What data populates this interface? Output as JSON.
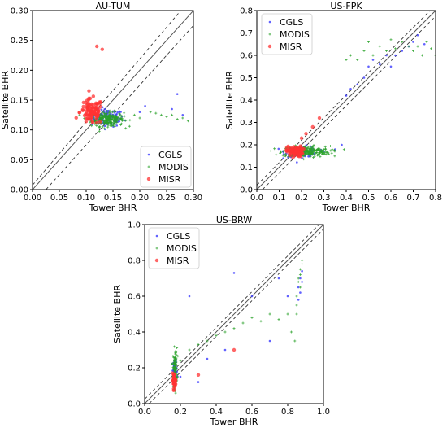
{
  "chart_data": [
    {
      "type": "scatter",
      "title": "AU-TUM",
      "xlabel": "Tower BHR",
      "ylabel": "Satellite BHR",
      "xlim": [
        0,
        0.3
      ],
      "ylim": [
        0,
        0.3
      ],
      "xticks": [
        "0.00",
        "0.05",
        "0.10",
        "0.15",
        "0.20",
        "0.25",
        "0.30"
      ],
      "yticks": [
        "0.00",
        "0.05",
        "0.10",
        "0.15",
        "0.20",
        "0.25",
        "0.30"
      ],
      "reference_lines": {
        "one_to_one": "solid",
        "offset": 0.025,
        "offset_style": "dashed"
      },
      "legend_placement": "lower-right",
      "series": [
        {
          "name": "CGLS",
          "color": "#3b3bff",
          "cluster": {
            "x_center": 0.14,
            "x_spread": 0.025,
            "y_center": 0.12,
            "y_spread": 0.012,
            "count": 110
          },
          "x": [
            0.2,
            0.21,
            0.26,
            0.27,
            0.28
          ],
          "y": [
            0.13,
            0.14,
            0.135,
            0.16,
            0.125
          ]
        },
        {
          "name": "MODIS",
          "color": "#2aa12a",
          "cluster": {
            "x_center": 0.14,
            "x_spread": 0.025,
            "y_center": 0.118,
            "y_spread": 0.01,
            "count": 230
          },
          "x": [
            0.19,
            0.2,
            0.22,
            0.23,
            0.24,
            0.25,
            0.26,
            0.27,
            0.28,
            0.29
          ],
          "y": [
            0.125,
            0.12,
            0.13,
            0.128,
            0.125,
            0.122,
            0.125,
            0.118,
            0.12,
            0.115
          ]
        },
        {
          "name": "MISR",
          "color": "#ff3333",
          "cluster": {
            "x_center": 0.11,
            "x_spread": 0.018,
            "y_center": 0.13,
            "y_spread": 0.018,
            "count": 100
          },
          "x": [
            0.12,
            0.13
          ],
          "y": [
            0.24,
            0.235
          ]
        }
      ]
    },
    {
      "type": "scatter",
      "title": "US-FPK",
      "xlabel": "Tower BHR",
      "ylabel": "Satellite BHR",
      "xlim": [
        0,
        0.8
      ],
      "ylim": [
        0,
        0.8
      ],
      "xticks": [
        "0.0",
        "0.1",
        "0.2",
        "0.3",
        "0.4",
        "0.5",
        "0.6",
        "0.7",
        "0.8"
      ],
      "yticks": [
        "0.0",
        "0.1",
        "0.2",
        "0.3",
        "0.4",
        "0.5",
        "0.6",
        "0.7",
        "0.8"
      ],
      "reference_lines": {
        "one_to_one": "solid",
        "offset": 0.025,
        "offset_style": "dashed"
      },
      "legend_placement": "upper-left",
      "series": [
        {
          "name": "CGLS",
          "color": "#3b3bff",
          "cluster": {
            "x_center": 0.2,
            "x_spread": 0.06,
            "y_center": 0.17,
            "y_spread": 0.02,
            "count": 90
          },
          "x": [
            0.3,
            0.35,
            0.38,
            0.4,
            0.42,
            0.45,
            0.48,
            0.5,
            0.52,
            0.55,
            0.58,
            0.6,
            0.62,
            0.65,
            0.68,
            0.7,
            0.72,
            0.75
          ],
          "y": [
            0.17,
            0.18,
            0.2,
            0.42,
            0.45,
            0.47,
            0.5,
            0.55,
            0.58,
            0.56,
            0.6,
            0.55,
            0.6,
            0.62,
            0.64,
            0.66,
            0.69,
            0.65
          ]
        },
        {
          "name": "MODIS",
          "color": "#2aa12a",
          "cluster": {
            "x_center": 0.22,
            "x_spread": 0.09,
            "y_center": 0.17,
            "y_spread": 0.02,
            "count": 240
          },
          "x": [
            0.4,
            0.42,
            0.45,
            0.48,
            0.5,
            0.52,
            0.55,
            0.58,
            0.6,
            0.62,
            0.65,
            0.68,
            0.7,
            0.72,
            0.74,
            0.76,
            0.78,
            0.8
          ],
          "y": [
            0.58,
            0.6,
            0.58,
            0.62,
            0.66,
            0.6,
            0.64,
            0.62,
            0.67,
            0.63,
            0.66,
            0.64,
            0.62,
            0.64,
            0.6,
            0.66,
            0.63,
            0.6
          ]
        },
        {
          "name": "MISR",
          "color": "#ff3333",
          "cluster": {
            "x_center": 0.17,
            "x_spread": 0.03,
            "y_center": 0.17,
            "y_spread": 0.02,
            "count": 80
          },
          "x": [
            0.2,
            0.22,
            0.25,
            0.28
          ],
          "y": [
            0.23,
            0.25,
            0.28,
            0.32
          ]
        }
      ]
    },
    {
      "type": "scatter",
      "title": "US-BRW",
      "xlabel": "Tower BHR",
      "ylabel": "Satellite BHR",
      "xlim": [
        0,
        1.0
      ],
      "ylim": [
        0,
        1.0
      ],
      "xticks": [
        "0.0",
        "0.2",
        "0.4",
        "0.6",
        "0.8",
        "1.0"
      ],
      "yticks": [
        "0.0",
        "0.2",
        "0.4",
        "0.6",
        "0.8",
        "1.0"
      ],
      "reference_lines": {
        "one_to_one": "solid",
        "offset": 0.025,
        "offset_style": "dashed"
      },
      "legend_placement": "upper-left",
      "series": [
        {
          "name": "CGLS",
          "color": "#3b3bff",
          "cluster": {
            "x_center": 0.17,
            "x_spread": 0.01,
            "y_center": 0.18,
            "y_spread": 0.05,
            "count": 50
          },
          "x": [
            0.2,
            0.25,
            0.3,
            0.35,
            0.45,
            0.5,
            0.6,
            0.7,
            0.75,
            0.8,
            0.86,
            0.87,
            0.88,
            0.87,
            0.86,
            0.88
          ],
          "y": [
            0.15,
            0.6,
            0.12,
            0.25,
            0.3,
            0.73,
            0.6,
            0.35,
            0.7,
            0.6,
            0.65,
            0.7,
            0.68,
            0.62,
            0.58,
            0.74
          ]
        },
        {
          "name": "MODIS",
          "color": "#2aa12a",
          "cluster": {
            "x_center": 0.17,
            "x_spread": 0.01,
            "y_center": 0.2,
            "y_spread": 0.09,
            "count": 90
          },
          "x": [
            0.2,
            0.25,
            0.3,
            0.35,
            0.4,
            0.45,
            0.5,
            0.55,
            0.6,
            0.65,
            0.7,
            0.75,
            0.8,
            0.85,
            0.86,
            0.87,
            0.88,
            0.87,
            0.86,
            0.88,
            0.85,
            0.84,
            0.82,
            0.85,
            0.87
          ],
          "y": [
            0.24,
            0.3,
            0.33,
            0.35,
            0.38,
            0.4,
            0.42,
            0.45,
            0.48,
            0.46,
            0.5,
            0.47,
            0.5,
            0.55,
            0.7,
            0.75,
            0.78,
            0.72,
            0.68,
            0.8,
            0.6,
            0.35,
            0.4,
            0.5,
            0.65
          ]
        },
        {
          "name": "MISR",
          "color": "#ff3333",
          "cluster": {
            "x_center": 0.165,
            "x_spread": 0.008,
            "y_center": 0.13,
            "y_spread": 0.03,
            "count": 40
          },
          "x": [
            0.3,
            0.5
          ],
          "y": [
            0.16,
            0.3
          ]
        }
      ]
    }
  ]
}
